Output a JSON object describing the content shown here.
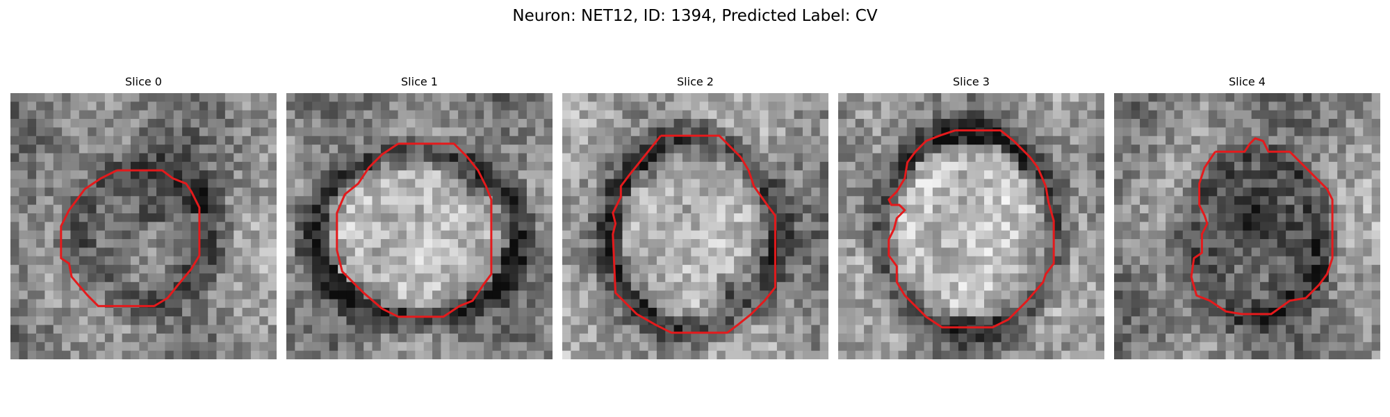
{
  "figure": {
    "title": "Neuron: NET12, ID: 1394, Predicted Label: CV",
    "contour_color": "#e41a1c"
  },
  "panels": [
    {
      "title": "Slice 0",
      "image": "grayscale EM tile",
      "contour": "red outline"
    },
    {
      "title": "Slice 1",
      "image": "grayscale EM tile",
      "contour": "red outline"
    },
    {
      "title": "Slice 2",
      "image": "grayscale EM tile",
      "contour": "red outline"
    },
    {
      "title": "Slice 3",
      "image": "grayscale EM tile",
      "contour": "red outline"
    },
    {
      "title": "Slice 4",
      "image": "grayscale EM tile",
      "contour": "red outline"
    }
  ]
}
